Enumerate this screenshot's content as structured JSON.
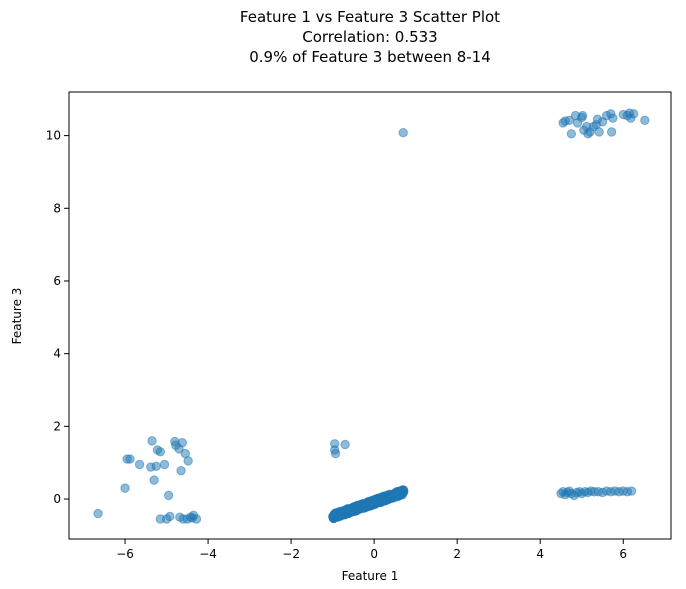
{
  "chart_data": {
    "type": "scatter",
    "title_lines": [
      "Feature 1 vs Feature 3 Scatter Plot",
      "Correlation: 0.533",
      "0.9% of Feature 3 between 8-14"
    ],
    "xlabel": "Feature 1",
    "ylabel": "Feature 3",
    "xlim": [
      -7.35,
      7.15
    ],
    "ylim": [
      -1.1,
      11.2
    ],
    "xticks": [
      -6,
      -4,
      -2,
      0,
      2,
      4,
      6
    ],
    "xtick_labels": [
      "−6",
      "−4",
      "−2",
      "0",
      "2",
      "4",
      "6"
    ],
    "yticks": [
      0,
      2,
      4,
      6,
      8,
      10
    ],
    "ytick_labels": [
      "0",
      "2",
      "4",
      "6",
      "8",
      "10"
    ],
    "grid": false,
    "marker_color": "#1f77b4",
    "marker_alpha": 0.5,
    "series": [
      {
        "values": [
          {
            "x": -6.65,
            "y": -0.4
          },
          {
            "x": -5.95,
            "y": 1.1
          },
          {
            "x": -5.88,
            "y": 1.1
          },
          {
            "x": -6.0,
            "y": 0.3
          },
          {
            "x": -5.65,
            "y": 0.95
          },
          {
            "x": -5.38,
            "y": 0.88
          },
          {
            "x": -5.35,
            "y": 1.6
          },
          {
            "x": -5.25,
            "y": 0.9
          },
          {
            "x": -5.22,
            "y": 1.35
          },
          {
            "x": -5.15,
            "y": 1.3
          },
          {
            "x": -5.3,
            "y": 0.52
          },
          {
            "x": -5.05,
            "y": 0.95
          },
          {
            "x": -4.95,
            "y": 0.1
          },
          {
            "x": -4.8,
            "y": 1.58
          },
          {
            "x": -4.78,
            "y": 1.48
          },
          {
            "x": -4.7,
            "y": 1.38
          },
          {
            "x": -4.62,
            "y": 1.55
          },
          {
            "x": -4.55,
            "y": 1.25
          },
          {
            "x": -4.48,
            "y": 1.05
          },
          {
            "x": -4.65,
            "y": 0.78
          },
          {
            "x": -5.15,
            "y": -0.55
          },
          {
            "x": -5.0,
            "y": -0.55
          },
          {
            "x": -4.92,
            "y": -0.48
          },
          {
            "x": -4.68,
            "y": -0.5
          },
          {
            "x": -4.6,
            "y": -0.55
          },
          {
            "x": -4.5,
            "y": -0.55
          },
          {
            "x": -4.42,
            "y": -0.5
          },
          {
            "x": -4.35,
            "y": -0.45
          },
          {
            "x": -4.28,
            "y": -0.55
          },
          {
            "x": -4.38,
            "y": -0.52
          },
          {
            "x": -0.95,
            "y": 1.52
          },
          {
            "x": -0.95,
            "y": 1.35
          },
          {
            "x": -0.93,
            "y": 1.25
          },
          {
            "x": -0.7,
            "y": 1.5
          },
          {
            "x": 0.7,
            "y": 10.08
          },
          {
            "x": 4.55,
            "y": 10.35
          },
          {
            "x": 4.6,
            "y": 10.4
          },
          {
            "x": 4.7,
            "y": 10.42
          },
          {
            "x": 4.75,
            "y": 10.05
          },
          {
            "x": 4.85,
            "y": 10.55
          },
          {
            "x": 4.9,
            "y": 10.35
          },
          {
            "x": 5.0,
            "y": 10.5
          },
          {
            "x": 5.02,
            "y": 10.55
          },
          {
            "x": 5.05,
            "y": 10.15
          },
          {
            "x": 5.12,
            "y": 10.25
          },
          {
            "x": 5.15,
            "y": 10.05
          },
          {
            "x": 5.2,
            "y": 10.1
          },
          {
            "x": 5.28,
            "y": 10.25
          },
          {
            "x": 5.35,
            "y": 10.3
          },
          {
            "x": 5.38,
            "y": 10.45
          },
          {
            "x": 5.42,
            "y": 10.1
          },
          {
            "x": 5.5,
            "y": 10.38
          },
          {
            "x": 5.6,
            "y": 10.55
          },
          {
            "x": 5.7,
            "y": 10.6
          },
          {
            "x": 5.72,
            "y": 10.1
          },
          {
            "x": 5.75,
            "y": 10.48
          },
          {
            "x": 6.0,
            "y": 10.58
          },
          {
            "x": 6.1,
            "y": 10.55
          },
          {
            "x": 6.15,
            "y": 10.62
          },
          {
            "x": 6.18,
            "y": 10.48
          },
          {
            "x": 6.25,
            "y": 10.6
          },
          {
            "x": 6.52,
            "y": 10.42
          },
          {
            "x": 4.5,
            "y": 0.15
          },
          {
            "x": 4.55,
            "y": 0.2
          },
          {
            "x": 4.6,
            "y": 0.12
          },
          {
            "x": 4.65,
            "y": 0.18
          },
          {
            "x": 4.7,
            "y": 0.22
          },
          {
            "x": 4.75,
            "y": 0.15
          },
          {
            "x": 4.82,
            "y": 0.1
          },
          {
            "x": 4.88,
            "y": 0.18
          },
          {
            "x": 4.95,
            "y": 0.2
          },
          {
            "x": 5.0,
            "y": 0.15
          },
          {
            "x": 5.08,
            "y": 0.2
          },
          {
            "x": 5.15,
            "y": 0.18
          },
          {
            "x": 5.22,
            "y": 0.22
          },
          {
            "x": 5.3,
            "y": 0.2
          },
          {
            "x": 5.4,
            "y": 0.2
          },
          {
            "x": 5.5,
            "y": 0.18
          },
          {
            "x": 5.6,
            "y": 0.22
          },
          {
            "x": 5.7,
            "y": 0.2
          },
          {
            "x": 5.8,
            "y": 0.22
          },
          {
            "x": 5.9,
            "y": 0.2
          },
          {
            "x": 6.0,
            "y": 0.22
          },
          {
            "x": 6.1,
            "y": 0.2
          },
          {
            "x": 6.2,
            "y": 0.22
          }
        ],
        "dense_band": {
          "x_range": [
            -1.0,
            0.72
          ],
          "y_at_xmin": -0.48,
          "y_at_xmax": 0.2,
          "spread": 0.14,
          "count": 520
        }
      }
    ]
  }
}
